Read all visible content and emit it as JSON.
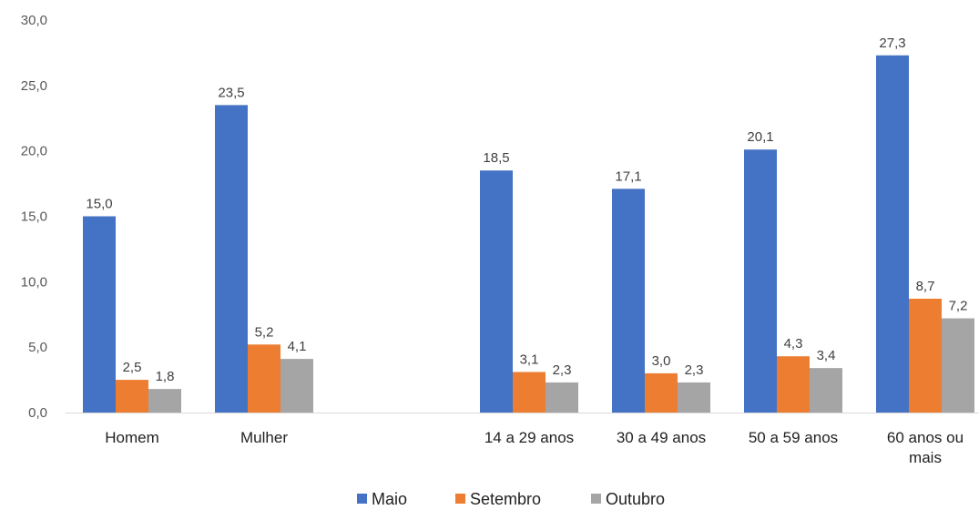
{
  "chart_data": {
    "type": "bar",
    "categories": [
      "Homem",
      "Mulher",
      "",
      "14 a 29 anos",
      "30 a 49 anos",
      "50 a 59 anos",
      "60 anos ou mais"
    ],
    "category_lines": [
      [
        "Homem"
      ],
      [
        "Mulher"
      ],
      [],
      [
        "14 a 29 anos"
      ],
      [
        "30 a 49 anos"
      ],
      [
        "50 a 59 anos"
      ],
      [
        "60 anos ou",
        "mais"
      ]
    ],
    "series": [
      {
        "name": "Maio",
        "color": "#4472C4",
        "values": [
          15.0,
          23.5,
          null,
          18.5,
          17.1,
          20.1,
          27.3
        ],
        "labels": [
          "15,0",
          "23,5",
          "",
          "18,5",
          "17,1",
          "20,1",
          "27,3"
        ]
      },
      {
        "name": "Setembro",
        "color": "#ED7D31",
        "values": [
          2.5,
          5.2,
          null,
          3.1,
          3.0,
          4.3,
          8.7
        ],
        "labels": [
          "2,5",
          "5,2",
          "",
          "3,1",
          "3,0",
          "4,3",
          "8,7"
        ]
      },
      {
        "name": "Outubro",
        "color": "#A5A5A5",
        "values": [
          1.8,
          4.1,
          null,
          2.3,
          2.3,
          3.4,
          7.2
        ],
        "labels": [
          "1,8",
          "4,1",
          "",
          "2,3",
          "2,3",
          "3,4",
          "7,2"
        ]
      }
    ],
    "yticks": [
      0,
      5,
      10,
      15,
      20,
      25,
      30
    ],
    "ytick_labels": [
      "0,0",
      "5,0",
      "10,0",
      "15,0",
      "20,0",
      "25,0",
      "30,0"
    ],
    "ylim": [
      0,
      30
    ],
    "title": "",
    "xlabel": "",
    "ylabel": "",
    "grid": false,
    "legend_position": "bottom"
  }
}
